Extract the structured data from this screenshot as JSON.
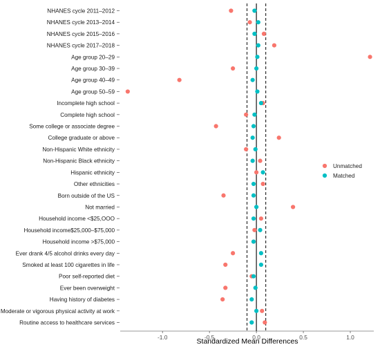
{
  "chart_data": {
    "type": "scatter",
    "title": "",
    "xlabel": "Standardized Mean Differences",
    "ylabel": "",
    "xlim": [
      -1.45,
      1.25
    ],
    "x_ticks": [
      -1.0,
      -0.5,
      0.0,
      0.5,
      1.0
    ],
    "x_tick_labels": [
      "-1.0",
      "-0.5",
      "0.0",
      "0.5",
      "1.0"
    ],
    "reference_lines": {
      "solid": [
        0.0
      ],
      "dashed": [
        -0.1,
        0.1
      ]
    },
    "categories": [
      "NHANES cycle 2011–2012",
      "NHANES cycle 2013–2014",
      "NHANES cycle 2015–2016",
      "NHANES cycle 2017–2018",
      "Age group 20–29",
      "Age group 30–39",
      "Age group 40–49",
      "Age group 50–59",
      "Incomplete high school",
      "Complete high school",
      "Some college or associate degree",
      "College graduate or above",
      "Non-Hispanic White ethnicity",
      "Non-Hispanic Black ethnicity",
      "Hispanic ethnicity",
      "Other ethnicities",
      "Born outside of the US",
      "Not married",
      "Household income <$25,OOO",
      "Household income$25,000–$75,000",
      "Household income >$75,000",
      "Ever drank 4/5 alcohol drinks every day",
      "Smoked at least 100 cigarettes in life",
      "Poor self-reported diet",
      "Ever been overweight",
      "Having history of diabetes",
      "Moderate or vigorous physical activity at  work",
      "Routine access to healthcare services"
    ],
    "series": [
      {
        "name": "Unmatched",
        "color": "#F8766D",
        "values": [
          -0.27,
          -0.07,
          0.08,
          0.19,
          1.21,
          -0.25,
          -0.82,
          -1.37,
          0.07,
          -0.11,
          -0.43,
          0.24,
          -0.11,
          0.04,
          0.0,
          0.07,
          -0.35,
          0.39,
          0.05,
          -0.02,
          -0.03,
          -0.25,
          -0.33,
          -0.05,
          -0.33,
          -0.36,
          0.06,
          0.09
        ]
      },
      {
        "name": "Matched",
        "color": "#00BFC4",
        "values": [
          -0.02,
          0.02,
          -0.02,
          0.02,
          0.01,
          0.0,
          -0.04,
          0.01,
          0.05,
          -0.02,
          -0.03,
          -0.04,
          -0.01,
          -0.04,
          0.07,
          -0.03,
          -0.03,
          0.0,
          -0.03,
          0.04,
          -0.03,
          0.05,
          0.05,
          -0.03,
          -0.01,
          -0.05,
          0.0,
          -0.05
        ]
      }
    ],
    "legend": {
      "placement": "right",
      "entries": [
        "Unmatched",
        "Matched"
      ]
    },
    "grid": false
  }
}
